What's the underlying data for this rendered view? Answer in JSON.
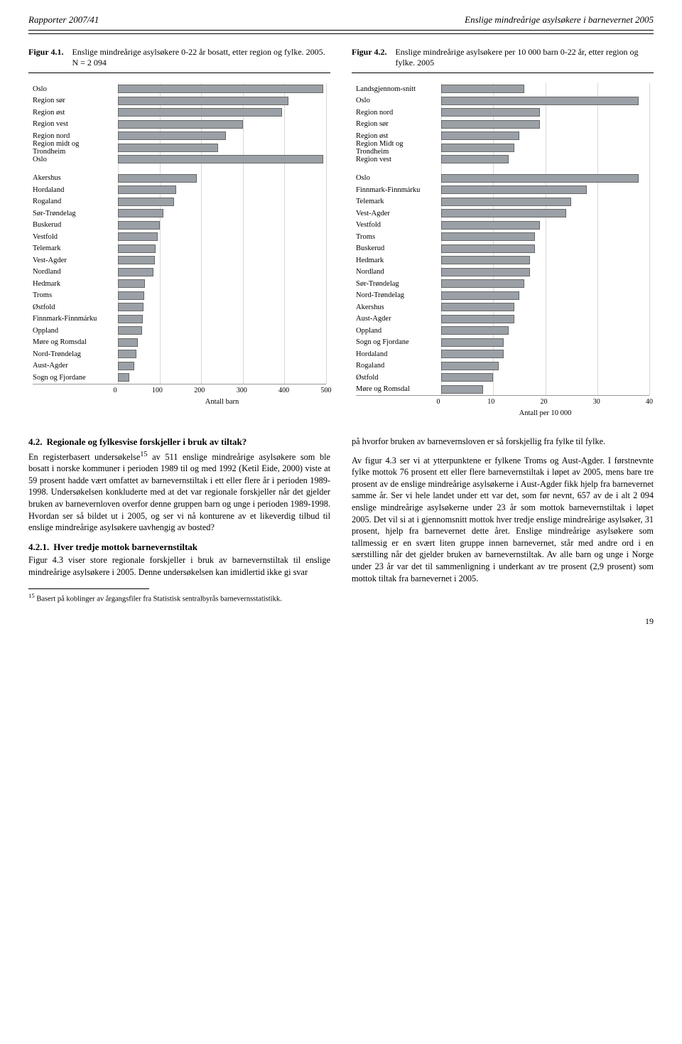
{
  "header": {
    "left": "Rapporter 2007/41",
    "right": "Enslige mindreårige asylsøkere i barnevernet 2005"
  },
  "figure_left": {
    "num": "Figur 4.1.",
    "desc": "Enslige mindreårige asylsøkere 0-22 år bosatt, etter region og fylke. 2005. N = 2 094",
    "x_title": "Antall barn",
    "xlim": [
      0,
      500
    ],
    "xticks": [
      0,
      100,
      200,
      300,
      400,
      500
    ],
    "bar_color": "#9aa0a6",
    "grid_color": "#d8d8d8",
    "label_fontsize": 10.5,
    "groups": [
      {
        "items": [
          {
            "label": "Oslo",
            "value": 493
          },
          {
            "label": "Region sør",
            "value": 410
          },
          {
            "label": "Region øst",
            "value": 395
          },
          {
            "label": "Region vest",
            "value": 300
          },
          {
            "label": "Region nord",
            "value": 260
          },
          {
            "label": "Region midt og Trondheim",
            "value": 240
          },
          {
            "label": "Oslo",
            "value": 493
          }
        ]
      },
      {
        "items": [
          {
            "label": "Akershus",
            "value": 190
          },
          {
            "label": "Hordaland",
            "value": 140
          },
          {
            "label": "Rogaland",
            "value": 135
          },
          {
            "label": "Sør-Trøndelag",
            "value": 110
          },
          {
            "label": "Buskerud",
            "value": 100
          },
          {
            "label": "Vestfold",
            "value": 95
          },
          {
            "label": "Telemark",
            "value": 90
          },
          {
            "label": "Vest-Agder",
            "value": 88
          },
          {
            "label": "Nordland",
            "value": 86
          },
          {
            "label": "Hedmark",
            "value": 65
          },
          {
            "label": "Troms",
            "value": 63
          },
          {
            "label": "Østfold",
            "value": 62
          },
          {
            "label": "Finnmark-Finnmárku",
            "value": 60
          },
          {
            "label": "Oppland",
            "value": 58
          },
          {
            "label": "Møre og Romsdal",
            "value": 48
          },
          {
            "label": "Nord-Trøndelag",
            "value": 45
          },
          {
            "label": "Aust-Agder",
            "value": 40
          },
          {
            "label": "Sogn og Fjordane",
            "value": 28
          }
        ]
      }
    ]
  },
  "figure_right": {
    "num": "Figur 4.2.",
    "desc": "Enslige mindreårige asylsøkere per 10 000 barn 0-22 år, etter region og fylke. 2005",
    "x_title": "Antall per 10 000",
    "xlim": [
      0,
      40
    ],
    "xticks": [
      0,
      10,
      20,
      30,
      40
    ],
    "bar_color": "#9aa0a6",
    "grid_color": "#d8d8d8",
    "label_fontsize": 10.5,
    "groups": [
      {
        "items": [
          {
            "label": "Landsgjennom-snitt",
            "value": 16
          },
          {
            "label": "Oslo",
            "value": 38
          },
          {
            "label": "Region nord",
            "value": 19
          },
          {
            "label": "Region sør",
            "value": 19
          },
          {
            "label": "Region øst",
            "value": 15
          },
          {
            "label": "Region Midt og Trondheim",
            "value": 14
          },
          {
            "label": "Region vest",
            "value": 13
          }
        ]
      },
      {
        "items": [
          {
            "label": "Oslo",
            "value": 38
          },
          {
            "label": "Finnmark-Finnmárku",
            "value": 28
          },
          {
            "label": "Telemark",
            "value": 25
          },
          {
            "label": "Vest-Agder",
            "value": 24
          },
          {
            "label": "Vestfold",
            "value": 19
          },
          {
            "label": "Troms",
            "value": 18
          },
          {
            "label": "Buskerud",
            "value": 18
          },
          {
            "label": "Hedmark",
            "value": 17
          },
          {
            "label": "Nordland",
            "value": 17
          },
          {
            "label": "Sør-Trøndelag",
            "value": 16
          },
          {
            "label": "Nord-Trøndelag",
            "value": 15
          },
          {
            "label": "Akershus",
            "value": 14
          },
          {
            "label": "Aust-Agder",
            "value": 14
          },
          {
            "label": "Oppland",
            "value": 13
          },
          {
            "label": "Sogn og Fjordane",
            "value": 12
          },
          {
            "label": "Hordaland",
            "value": 12
          },
          {
            "label": "Rogaland",
            "value": 11
          },
          {
            "label": "Østfold",
            "value": 10
          },
          {
            "label": "Møre og Romsdal",
            "value": 8
          }
        ]
      }
    ]
  },
  "body": {
    "left": {
      "sec1_num": "4.2.",
      "sec1_title": "Regionale og fylkesvise forskjeller i bruk av tiltak?",
      "para1_a": "En registerbasert undersøkelse",
      "para1_sup": "15",
      "para1_b": " av 511 enslige mindreårige asylsøkere som ble bosatt i norske kommuner i perioden 1989 til og med 1992 (Ketil Eide, 2000) viste at 59 prosent hadde vært omfattet av barnevernstiltak i ett eller flere år i perioden 1989-1998. Undersøkelsen konkluderte med at det var regionale forskjeller når det gjelder bruken av barnevernloven overfor denne gruppen barn og unge i perioden 1989-1998. Hvordan ser så bildet ut i 2005, og ser vi nå konturene av et likeverdig tilbud til enslige mindreårige asylsøkere uavhengig av bosted?",
      "sec2_num": "4.2.1.",
      "sec2_title": "Hver tredje mottok barnevernstiltak",
      "para2": "Figur 4.3 viser store regionale forskjeller i bruk av barnevernstiltak til enslige mindreårige asylsøkere i 2005. Denne undersøkelsen kan imidlertid ikke gi svar",
      "footnote_sup": "15",
      "footnote": " Basert på koblinger av årgangsfiler fra Statistisk sentralbyrås barnevernsstatistikk."
    },
    "right": {
      "para1": "på hvorfor bruken av barnevernsloven er så forskjellig fra fylke til fylke.",
      "para2": "Av figur 4.3 ser vi at ytterpunktene er fylkene Troms og Aust-Agder. I førstnevnte fylke mottok 76 prosent ett eller flere barnevernstiltak i løpet av 2005, mens bare tre prosent av de enslige mindreårige asylsøkerne i Aust-Agder fikk hjelp fra barnevernet samme år. Ser vi hele landet under ett var det, som før nevnt, 657 av de i alt 2 094 enslige mindreårige asylsøkerne under 23 år som mottok barnevernstiltak i løpet 2005. Det vil si at i gjennomsnitt mottok hver tredje enslige mindreårige asylsøker, 31 prosent, hjelp fra barnevernet dette året. Enslige mindreårige asylsøkere som tallmessig er en svært liten gruppe innen barnevernet, står med andre ord i en særstilling når det gjelder bruken av barnevernstiltak. Av alle barn og unge i Norge under 23 år var det til sammenligning i underkant av tre prosent (2,9 prosent) som mottok tiltak fra barnevernet i 2005."
    }
  },
  "page_number": "19"
}
